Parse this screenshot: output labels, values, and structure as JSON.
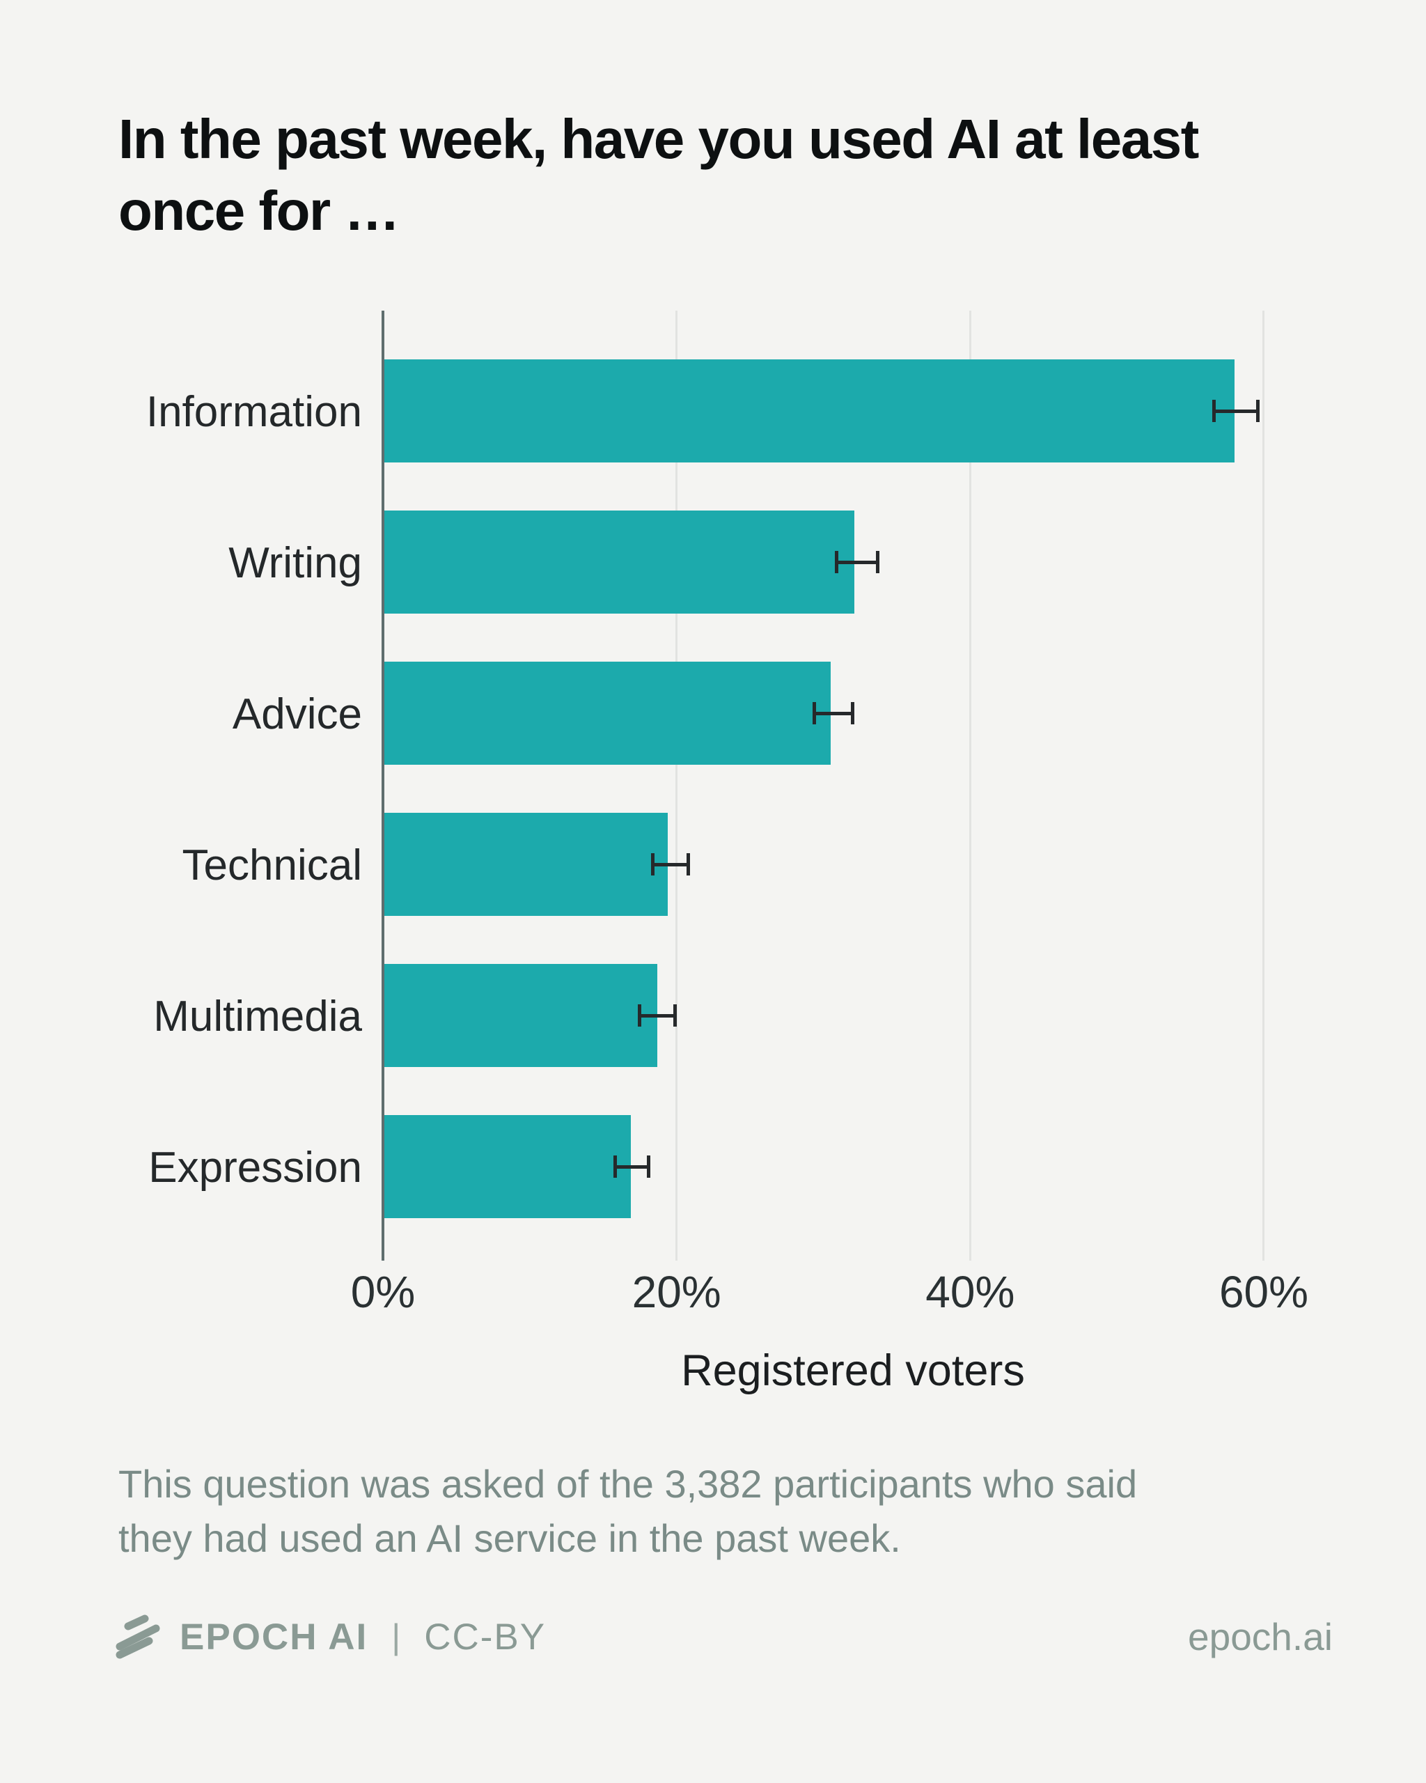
{
  "title": "In the past week, have you used AI at least\nonce for …",
  "chart_data": {
    "type": "bar",
    "orientation": "horizontal",
    "title": "In the past week, have you used AI at least once for …",
    "categories": [
      "Information",
      "Writing",
      "Advice",
      "Technical",
      "Multimedia",
      "Expression"
    ],
    "values": [
      58.0,
      32.1,
      30.5,
      19.4,
      18.7,
      16.9
    ],
    "error_low": [
      56.6,
      30.9,
      29.4,
      18.4,
      17.5,
      15.8
    ],
    "error_high": [
      59.6,
      33.7,
      32.0,
      20.8,
      19.9,
      18.1
    ],
    "xlabel": "Registered voters",
    "xlim": [
      0,
      64
    ],
    "xticks": [
      {
        "value": 0,
        "label": "0%"
      },
      {
        "value": 20,
        "label": "20%"
      },
      {
        "value": 40,
        "label": "40%"
      },
      {
        "value": 60,
        "label": "60%"
      }
    ],
    "grid": true,
    "legend_position": "none",
    "bar_color": "#1CAAAC",
    "errorbar_color": "#26292B"
  },
  "footnote": "This question was asked of the 3,382 participants who said\nthey had used an AI service in the past week.",
  "footer": {
    "logo_icon": "epoch-ai-logo",
    "brand": "EPOCH AI",
    "divider": "|",
    "license": "CC-BY",
    "website": "epoch.ai"
  },
  "colors": {
    "background": "#F4F4F2",
    "bar": "#1CAAAC",
    "errorbar": "#26292B",
    "gridline": "#E2E3E1",
    "axisline": "#5F6E6E",
    "title_text": "#0D1011",
    "footnote_text": "#7A8B87",
    "footer_text": "#8A9A94"
  }
}
